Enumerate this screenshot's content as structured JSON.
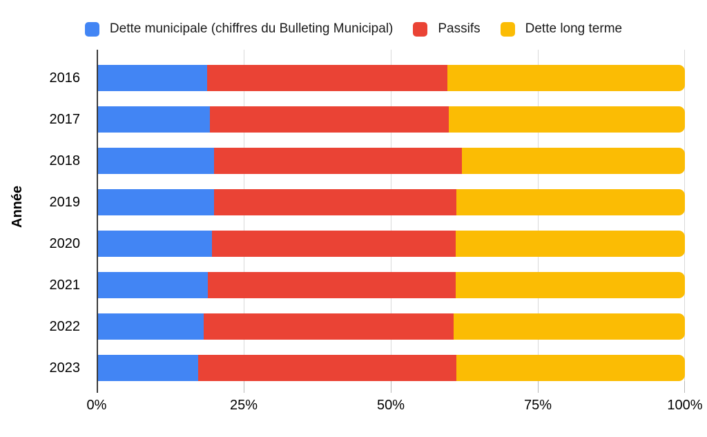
{
  "chart_data": {
    "type": "bar",
    "orientation": "horizontal",
    "stacked": true,
    "stacked_mode": "percent",
    "title": "",
    "xlabel": "",
    "ylabel": "Année",
    "categories": [
      "2016",
      "2017",
      "2018",
      "2019",
      "2020",
      "2021",
      "2022",
      "2023"
    ],
    "series": [
      {
        "name": "Dette municipale (chiffres du Bulleting Municipal)",
        "color": "#4285F4",
        "values": [
          18.8,
          19.2,
          20.0,
          19.9,
          19.6,
          18.9,
          18.2,
          17.2
        ]
      },
      {
        "name": "Passifs",
        "color": "#EA4335",
        "values": [
          40.8,
          40.7,
          42.1,
          41.3,
          41.4,
          42.1,
          42.5,
          43.9
        ]
      },
      {
        "name": "Dette long terme",
        "color": "#FBBC04",
        "values": [
          40.4,
          40.1,
          37.9,
          38.8,
          39.0,
          39.0,
          39.3,
          38.9
        ]
      }
    ],
    "x_ticks": [
      "0%",
      "25%",
      "50%",
      "75%",
      "100%"
    ],
    "x_tick_positions": [
      0,
      25,
      50,
      75,
      100
    ],
    "xlim": [
      0,
      100
    ],
    "grid": true,
    "legend_position": "top",
    "colors": {
      "gridline": "#d9d9d9",
      "axis_line": "#3a3a3a",
      "tick": "#b7b7b7",
      "label_text": "#000000",
      "legend_text": "#1a1a1a",
      "background": "#ffffff"
    }
  }
}
